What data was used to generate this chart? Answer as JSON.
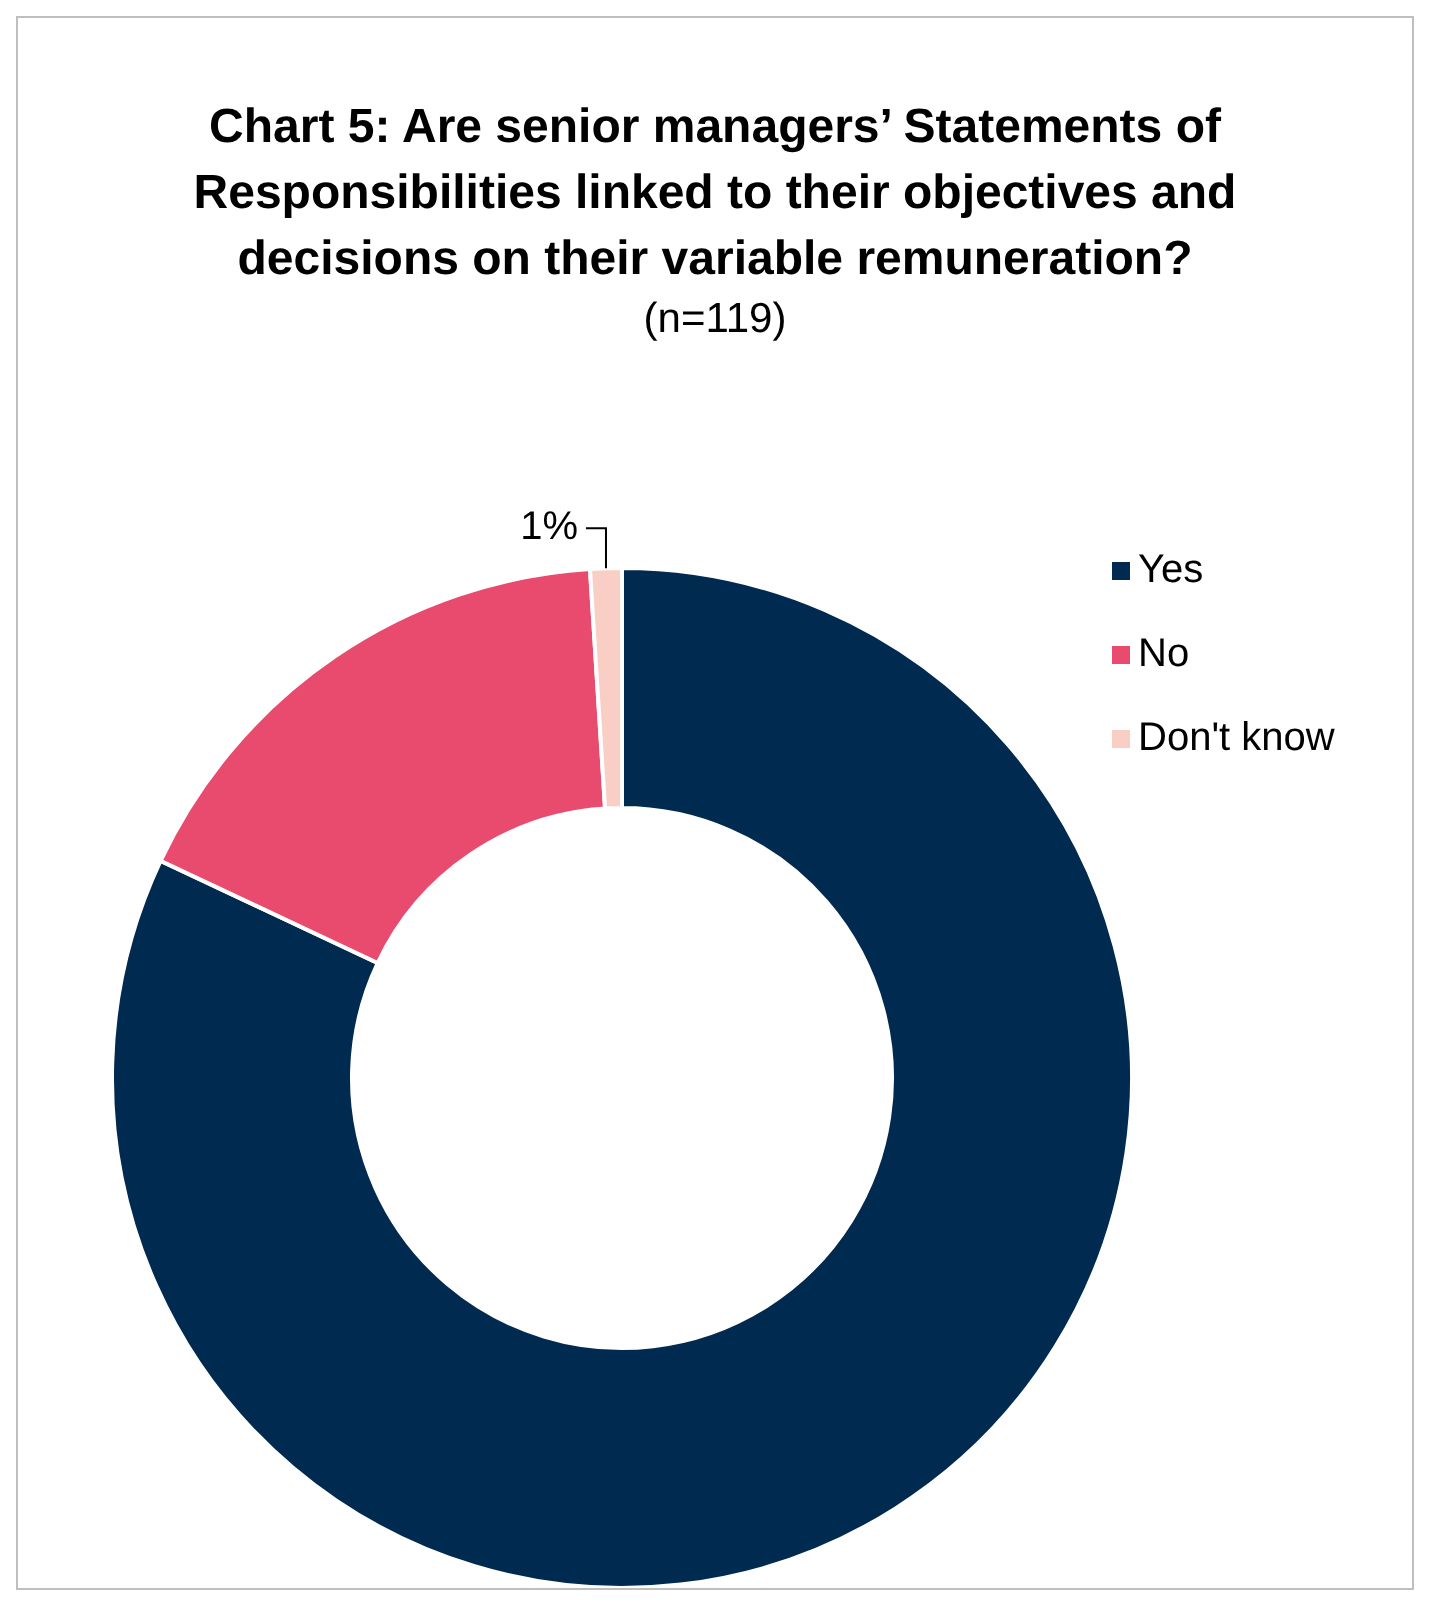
{
  "chart_data": {
    "type": "donut",
    "title": "Chart 5: Are senior managers’ Statements of Responsibilities linked to their objectives and decisions on their variable remuneration?",
    "subtitle": "(n=119)",
    "categories": [
      "Yes",
      "No",
      "Don't know"
    ],
    "values": [
      82,
      17,
      1
    ],
    "colors": [
      "#002a4f",
      "#e84b6e",
      "#f9cfc5"
    ],
    "value_labels": [
      null,
      null,
      "1%"
    ],
    "legend": "right"
  }
}
